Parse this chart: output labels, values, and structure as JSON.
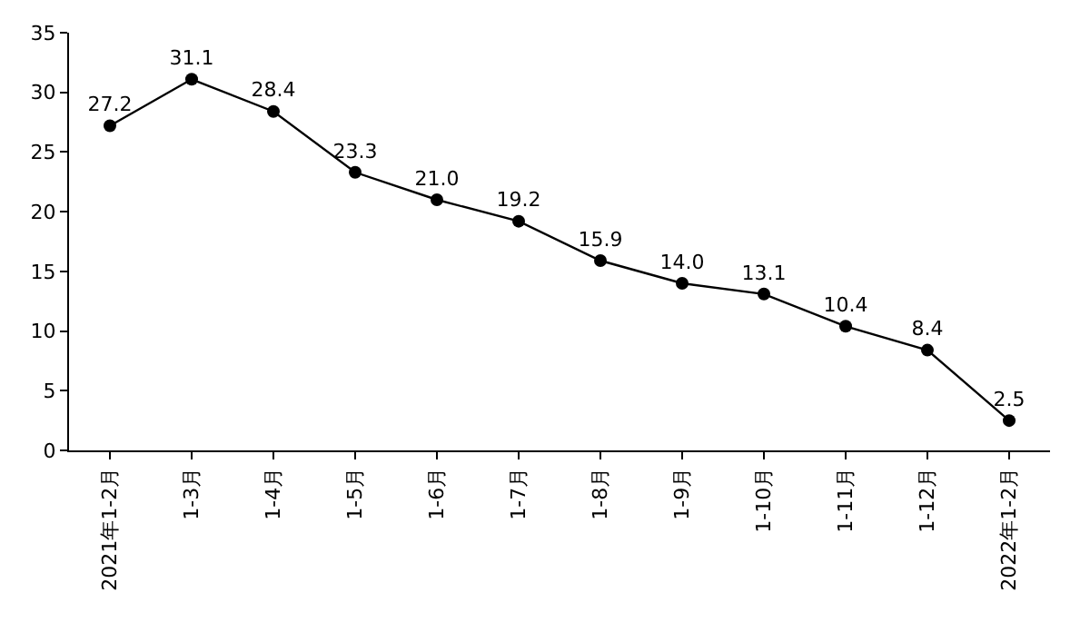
{
  "chart_data": {
    "type": "line",
    "categories": [
      "2021年1-2月",
      "1-3月",
      "1-4月",
      "1-5月",
      "1-6月",
      "1-7月",
      "1-8月",
      "1-9月",
      "1-10月",
      "1-11月",
      "1-12月",
      "2022年1-2月"
    ],
    "values": [
      27.2,
      31.1,
      28.4,
      23.3,
      21.0,
      19.2,
      15.9,
      14.0,
      13.1,
      10.4,
      8.4,
      2.5
    ],
    "value_labels": [
      "27.2",
      "31.1",
      "28.4",
      "23.3",
      "21.0",
      "19.2",
      "15.9",
      "14.0",
      "13.1",
      "10.4",
      "8.4",
      "2.5"
    ],
    "color": "#000000",
    "marker": "circle",
    "line_style": "solid",
    "ylim": [
      0,
      35
    ],
    "yticks": [
      0,
      5,
      10,
      15,
      20,
      25,
      30,
      35
    ]
  }
}
